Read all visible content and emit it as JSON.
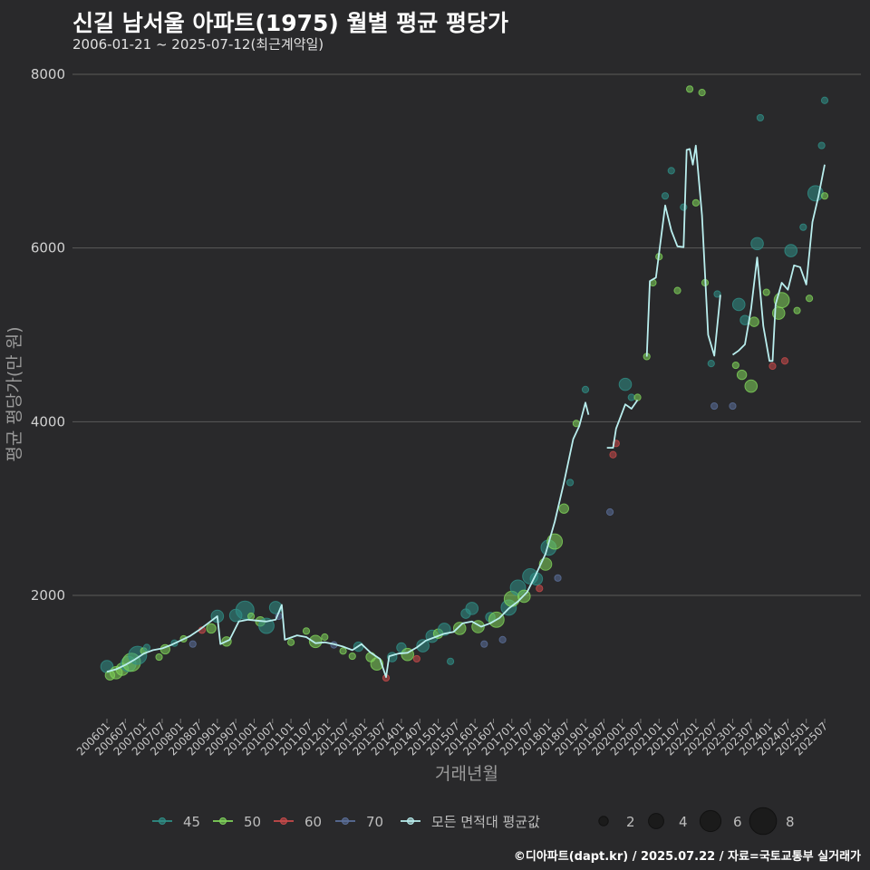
{
  "header": {
    "title": "신길 남서울 아파트(1975) 월별 평균 평당가",
    "subtitle": "2006-01-21 ~ 2025-07-12(최근계약일)"
  },
  "footer": {
    "credit": "©디아파트(dapt.kr) / 2025.07.22 / 자료=국토교통부 실거래가"
  },
  "colors": {
    "background": "#29292b",
    "grid": "#5a5a5a",
    "s45": "#2f8f87",
    "s50": "#7fd35a",
    "s60": "#c94a4a",
    "s70": "#5b6f9a",
    "avg": "#b9eeee"
  },
  "chart_data": {
    "type": "scatter",
    "xlabel": "거래년월",
    "ylabel": "평균 평당가(만 원)",
    "ylim": [
      600,
      8200
    ],
    "yticks": [
      2000,
      4000,
      6000,
      8000
    ],
    "xlim": [
      "2006-01",
      "2025-07"
    ],
    "xticks": [
      "200601",
      "200607",
      "200701",
      "200707",
      "200801",
      "200807",
      "200901",
      "200907",
      "201001",
      "201007",
      "201101",
      "201107",
      "201201",
      "201207",
      "201301",
      "201307",
      "201401",
      "201407",
      "201501",
      "201507",
      "201601",
      "201607",
      "201701",
      "201707",
      "201801",
      "201807",
      "201901",
      "201907",
      "202001",
      "202007",
      "202101",
      "202107",
      "202201",
      "202207",
      "202301",
      "202307",
      "202401",
      "202407",
      "202501",
      "202507"
    ],
    "grid": true,
    "legend_position": "bottom",
    "legend": {
      "series": [
        {
          "key": "45",
          "label": "45",
          "color": "#2f8f87"
        },
        {
          "key": "50",
          "label": "50",
          "color": "#7fd35a"
        },
        {
          "key": "60",
          "label": "60",
          "color": "#c94a4a"
        },
        {
          "key": "70",
          "label": "70",
          "color": "#5b6f9a"
        },
        {
          "key": "avg",
          "label": "모든 면적대 평균값",
          "color": "#b9eeee"
        }
      ],
      "sizes": [
        2,
        4,
        6,
        8
      ]
    },
    "line": {
      "name": "모든 면적대 평균값",
      "points": [
        [
          "2006-01",
          1120
        ],
        [
          "2006-04",
          1150
        ],
        [
          "2006-07",
          1200
        ],
        [
          "2006-10",
          1260
        ],
        [
          "2007-01",
          1330
        ],
        [
          "2007-04",
          1370
        ],
        [
          "2007-07",
          1390
        ],
        [
          "2007-10",
          1430
        ],
        [
          "2008-01",
          1480
        ],
        [
          "2008-04",
          1530
        ],
        [
          "2008-07",
          1600
        ],
        [
          "2008-10",
          1680
        ],
        [
          "2009-01",
          1760
        ],
        [
          "2009-02",
          1440
        ],
        [
          "2009-05",
          1490
        ],
        [
          "2009-08",
          1700
        ],
        [
          "2009-11",
          1720
        ],
        [
          "2010-02",
          1710
        ],
        [
          "2010-05",
          1700
        ],
        [
          "2010-08",
          1720
        ],
        [
          "2010-10",
          1890
        ],
        [
          "2010-11",
          1490
        ],
        [
          "2011-03",
          1540
        ],
        [
          "2011-06",
          1520
        ],
        [
          "2011-09",
          1450
        ],
        [
          "2011-12",
          1460
        ],
        [
          "2012-03",
          1440
        ],
        [
          "2012-06",
          1410
        ],
        [
          "2012-09",
          1370
        ],
        [
          "2012-12",
          1440
        ],
        [
          "2013-03",
          1340
        ],
        [
          "2013-06",
          1270
        ],
        [
          "2013-08",
          1060
        ],
        [
          "2013-09",
          1300
        ],
        [
          "2013-12",
          1330
        ],
        [
          "2014-03",
          1340
        ],
        [
          "2014-06",
          1400
        ],
        [
          "2014-09",
          1480
        ],
        [
          "2014-12",
          1520
        ],
        [
          "2015-03",
          1560
        ],
        [
          "2015-06",
          1580
        ],
        [
          "2015-09",
          1680
        ],
        [
          "2015-12",
          1700
        ],
        [
          "2016-03",
          1640
        ],
        [
          "2016-06",
          1680
        ],
        [
          "2016-09",
          1740
        ],
        [
          "2016-12",
          1850
        ],
        [
          "2017-03",
          1930
        ],
        [
          "2017-06",
          2040
        ],
        [
          "2017-09",
          2250
        ],
        [
          "2017-12",
          2480
        ],
        [
          "2018-03",
          2850
        ],
        [
          "2018-06",
          3300
        ],
        [
          "2018-09",
          3800
        ],
        [
          "2018-11",
          3950
        ],
        [
          "2019-01",
          4220
        ],
        [
          "2019-02",
          4080
        ],
        [
          "2019-03",
          null
        ],
        [
          "2019-08",
          3700
        ],
        [
          "2019-10",
          3700
        ],
        [
          "2019-11",
          3920
        ],
        [
          "2020-02",
          4200
        ],
        [
          "2020-04",
          4150
        ],
        [
          "2020-06",
          4250
        ],
        [
          "2020-07",
          null
        ],
        [
          "2020-09",
          4750
        ],
        [
          "2020-10",
          5620
        ],
        [
          "2020-12",
          5660
        ],
        [
          "2021-03",
          6490
        ],
        [
          "2021-05",
          6200
        ],
        [
          "2021-07",
          6020
        ],
        [
          "2021-09",
          6010
        ],
        [
          "2021-10",
          7130
        ],
        [
          "2021-11",
          7140
        ],
        [
          "2021-12",
          6960
        ],
        [
          "2022-01",
          7180
        ],
        [
          "2022-03",
          6380
        ],
        [
          "2022-05",
          5000
        ],
        [
          "2022-07",
          4760
        ],
        [
          "2022-09",
          5460
        ],
        [
          "2022-10",
          null
        ],
        [
          "2023-01",
          4770
        ],
        [
          "2023-03",
          4820
        ],
        [
          "2023-05",
          4890
        ],
        [
          "2023-07",
          5300
        ],
        [
          "2023-08",
          5600
        ],
        [
          "2023-09",
          5890
        ],
        [
          "2023-11",
          5100
        ],
        [
          "2024-01",
          4700
        ],
        [
          "2024-02",
          4700
        ],
        [
          "2024-03",
          5350
        ],
        [
          "2024-05",
          5600
        ],
        [
          "2024-07",
          5520
        ],
        [
          "2024-09",
          5800
        ],
        [
          "2024-11",
          5780
        ],
        [
          "2025-01",
          5580
        ],
        [
          "2025-03",
          6300
        ],
        [
          "2025-05",
          6600
        ],
        [
          "2025-07",
          6960
        ]
      ]
    },
    "points": [
      [
        "2006-01",
        1180,
        3,
        "45"
      ],
      [
        "2006-02",
        1080,
        2,
        "50"
      ],
      [
        "2006-04",
        1110,
        3,
        "50"
      ],
      [
        "2006-06",
        1150,
        3,
        "50"
      ],
      [
        "2006-08",
        1210,
        4,
        "45"
      ],
      [
        "2006-09",
        1230,
        5,
        "50"
      ],
      [
        "2006-11",
        1310,
        5,
        "45"
      ],
      [
        "2007-01",
        1360,
        1,
        "50"
      ],
      [
        "2007-02",
        1400,
        1,
        "45"
      ],
      [
        "2007-06",
        1290,
        1,
        "50"
      ],
      [
        "2007-08",
        1380,
        2,
        "50"
      ],
      [
        "2007-11",
        1450,
        1,
        "45"
      ],
      [
        "2008-02",
        1500,
        1,
        "50"
      ],
      [
        "2008-05",
        1440,
        1,
        "70"
      ],
      [
        "2008-08",
        1600,
        1,
        "60"
      ],
      [
        "2008-11",
        1620,
        2,
        "50"
      ],
      [
        "2009-01",
        1760,
        3,
        "45"
      ],
      [
        "2009-04",
        1470,
        2,
        "50"
      ],
      [
        "2009-07",
        1770,
        3,
        "45"
      ],
      [
        "2009-10",
        1830,
        5,
        "45"
      ],
      [
        "2009-12",
        1760,
        1,
        "50"
      ],
      [
        "2010-03",
        1700,
        2,
        "50"
      ],
      [
        "2010-05",
        1650,
        4,
        "45"
      ],
      [
        "2010-08",
        1860,
        3,
        "45"
      ],
      [
        "2010-09",
        1760,
        1,
        "70"
      ],
      [
        "2011-01",
        1460,
        1,
        "50"
      ],
      [
        "2011-06",
        1590,
        1,
        "50"
      ],
      [
        "2011-09",
        1470,
        3,
        "50"
      ],
      [
        "2011-12",
        1520,
        1,
        "50"
      ],
      [
        "2012-03",
        1430,
        1,
        "70"
      ],
      [
        "2012-06",
        1360,
        1,
        "50"
      ],
      [
        "2012-09",
        1300,
        1,
        "50"
      ],
      [
        "2012-11",
        1410,
        2,
        "45"
      ],
      [
        "2013-03",
        1290,
        2,
        "50"
      ],
      [
        "2013-05",
        1210,
        3,
        "50"
      ],
      [
        "2013-08",
        1050,
        1,
        "60"
      ],
      [
        "2013-10",
        1290,
        2,
        "45"
      ],
      [
        "2014-01",
        1400,
        2,
        "45"
      ],
      [
        "2014-03",
        1320,
        3,
        "50"
      ],
      [
        "2014-06",
        1270,
        1,
        "60"
      ],
      [
        "2014-08",
        1420,
        3,
        "45"
      ],
      [
        "2014-11",
        1530,
        3,
        "45"
      ],
      [
        "2015-01",
        1560,
        2,
        "50"
      ],
      [
        "2015-03",
        1610,
        3,
        "45"
      ],
      [
        "2015-05",
        1240,
        1,
        "45"
      ],
      [
        "2015-08",
        1620,
        3,
        "50"
      ],
      [
        "2015-10",
        1790,
        2,
        "45"
      ],
      [
        "2015-12",
        1850,
        3,
        "45"
      ],
      [
        "2016-02",
        1640,
        3,
        "50"
      ],
      [
        "2016-04",
        1440,
        1,
        "70"
      ],
      [
        "2016-06",
        1750,
        2,
        "45"
      ],
      [
        "2016-08",
        1720,
        4,
        "50"
      ],
      [
        "2016-10",
        1490,
        1,
        "70"
      ],
      [
        "2016-12",
        1860,
        4,
        "45"
      ],
      [
        "2017-01",
        1960,
        4,
        "50"
      ],
      [
        "2017-03",
        2090,
        4,
        "45"
      ],
      [
        "2017-05",
        1990,
        3,
        "50"
      ],
      [
        "2017-07",
        2220,
        4,
        "45"
      ],
      [
        "2017-09",
        2190,
        3,
        "45"
      ],
      [
        "2017-10",
        2080,
        1,
        "60"
      ],
      [
        "2017-12",
        2360,
        3,
        "50"
      ],
      [
        "2018-01",
        2550,
        4,
        "45"
      ],
      [
        "2018-03",
        2620,
        4,
        "50"
      ],
      [
        "2018-04",
        2200,
        1,
        "70"
      ],
      [
        "2018-06",
        3000,
        2,
        "50"
      ],
      [
        "2018-08",
        3300,
        1,
        "45"
      ],
      [
        "2018-10",
        3980,
        1,
        "50"
      ],
      [
        "2019-01",
        4370,
        1,
        "45"
      ],
      [
        "2019-09",
        2960,
        1,
        "70"
      ],
      [
        "2019-10",
        3620,
        1,
        "60"
      ],
      [
        "2019-11",
        3750,
        1,
        "60"
      ],
      [
        "2020-02",
        4430,
        3,
        "45"
      ],
      [
        "2020-04",
        4280,
        1,
        "45"
      ],
      [
        "2020-06",
        4280,
        1,
        "50"
      ],
      [
        "2020-09",
        4750,
        1,
        "50"
      ],
      [
        "2020-11",
        5600,
        1,
        "50"
      ],
      [
        "2021-01",
        5900,
        1,
        "50"
      ],
      [
        "2021-03",
        6600,
        1,
        "45"
      ],
      [
        "2021-05",
        6890,
        1,
        "45"
      ],
      [
        "2021-07",
        5510,
        1,
        "50"
      ],
      [
        "2021-09",
        6470,
        1,
        "45"
      ],
      [
        "2021-11",
        7830,
        1,
        "50"
      ],
      [
        "2022-01",
        6520,
        1,
        "50"
      ],
      [
        "2022-03",
        7790,
        1,
        "50"
      ],
      [
        "2022-04",
        5600,
        1,
        "50"
      ],
      [
        "2022-06",
        4670,
        1,
        "45"
      ],
      [
        "2022-07",
        4180,
        1,
        "70"
      ],
      [
        "2022-08",
        5470,
        1,
        "45"
      ],
      [
        "2023-01",
        4180,
        1,
        "70"
      ],
      [
        "2023-02",
        4650,
        1,
        "50"
      ],
      [
        "2023-03",
        5350,
        3,
        "45"
      ],
      [
        "2023-04",
        4540,
        2,
        "50"
      ],
      [
        "2023-05",
        5170,
        2,
        "45"
      ],
      [
        "2023-07",
        4410,
        3,
        "50"
      ],
      [
        "2023-08",
        5150,
        2,
        "50"
      ],
      [
        "2023-09",
        6050,
        3,
        "45"
      ],
      [
        "2023-10",
        7500,
        1,
        "45"
      ],
      [
        "2023-12",
        5490,
        1,
        "50"
      ],
      [
        "2024-02",
        4640,
        1,
        "60"
      ],
      [
        "2024-04",
        5250,
        3,
        "50"
      ],
      [
        "2024-05",
        5400,
        4,
        "50"
      ],
      [
        "2024-06",
        4700,
        1,
        "60"
      ],
      [
        "2024-08",
        5970,
        3,
        "45"
      ],
      [
        "2024-10",
        5280,
        1,
        "50"
      ],
      [
        "2024-12",
        6240,
        1,
        "45"
      ],
      [
        "2025-02",
        5420,
        1,
        "50"
      ],
      [
        "2025-04",
        6630,
        4,
        "45"
      ],
      [
        "2025-06",
        7180,
        1,
        "45"
      ],
      [
        "2025-07",
        7700,
        1,
        "45"
      ],
      [
        "2025-07",
        6600,
        1,
        "50"
      ]
    ]
  }
}
